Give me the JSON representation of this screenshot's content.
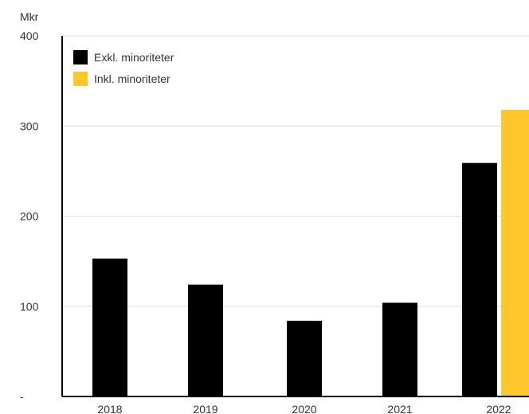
{
  "chart_data": {
    "type": "bar",
    "unit_label": "Mkr",
    "categories": [
      "2018",
      "2019",
      "2020",
      "2021",
      "2022"
    ],
    "series": [
      {
        "name": "Exkl. minoriteter",
        "color": "#000000",
        "values": [
          153,
          124,
          84,
          104,
          259
        ]
      },
      {
        "name": "Inkl. minoriteter",
        "color": "#FFC72C",
        "values": [
          null,
          null,
          null,
          null,
          318
        ]
      }
    ],
    "y_ticks": [
      {
        "value": 0,
        "label": "-"
      },
      {
        "value": 100,
        "label": "100"
      },
      {
        "value": 200,
        "label": "200"
      },
      {
        "value": 300,
        "label": "300"
      },
      {
        "value": 400,
        "label": "400"
      }
    ],
    "ylim": [
      0,
      400
    ],
    "grid": true,
    "legend_position": "top-left"
  }
}
